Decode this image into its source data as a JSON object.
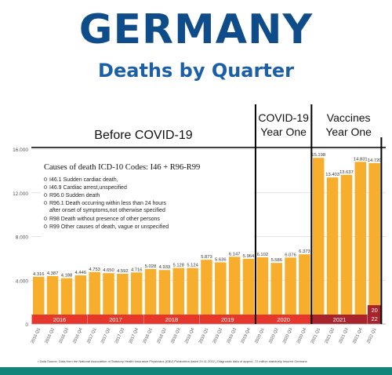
{
  "header": {
    "title": "GERMANY",
    "subtitle": "Deaths by Quarter"
  },
  "chart_data": {
    "type": "bar",
    "categories": [
      "2016 Q1",
      "2016 Q2",
      "2016 Q3",
      "2016 Q4",
      "2017 Q1",
      "2017 Q2",
      "2017 Q3",
      "2017 Q4",
      "2018 Q1",
      "2018 Q2",
      "2018 Q3",
      "2018 Q4",
      "2019 Q1",
      "2019 Q2",
      "2019 Q3",
      "2019 Q4",
      "2020 Q1",
      "2020 Q2",
      "2020 Q3",
      "2020 Q4",
      "2021 Q1",
      "2021 Q2",
      "2021 Q3",
      "2021 Q4",
      "2022 Q1"
    ],
    "values": [
      4316,
      4387,
      4188,
      4446,
      4753,
      4650,
      4592,
      4716,
      5028,
      4933,
      5128,
      5124,
      5873,
      5636,
      6147,
      5964,
      6102,
      5586,
      6076,
      6373,
      15198,
      13403,
      13637,
      14831,
      14720
    ],
    "value_labels": [
      "4.316",
      "4.387",
      "4.188",
      "4.446",
      "4.753",
      "4.650",
      "4.592",
      "4.716",
      "5.028",
      "4.933",
      "5.128",
      "5.124",
      "5.873",
      "5.636",
      "6.147",
      "5.964",
      "6.102",
      "5.586",
      "6.076",
      "6.373",
      "15.198",
      "13.403",
      "13.637",
      "14.831",
      "14.720"
    ],
    "ylim": [
      0,
      16000
    ],
    "y_ticks": [
      0,
      4000,
      8000,
      12000,
      16000
    ],
    "y_tick_labels": [
      "0",
      "4.000",
      "8.000",
      "12.000",
      "16.000"
    ],
    "bar_color": "#f7ae2c",
    "year_bands": [
      {
        "label": "2016",
        "start": 0,
        "end": 3,
        "color": "#e7372d"
      },
      {
        "label": "2017",
        "start": 4,
        "end": 7,
        "color": "#e7372d"
      },
      {
        "label": "2018",
        "start": 8,
        "end": 11,
        "color": "#e7372d"
      },
      {
        "label": "2019",
        "start": 12,
        "end": 15,
        "color": "#e7372d"
      },
      {
        "label": "2020",
        "start": 16,
        "end": 19,
        "color": "#e7372d"
      },
      {
        "label": "2021",
        "start": 20,
        "end": 23,
        "color": "#a8232b"
      },
      {
        "label": "20\n22",
        "start": 24,
        "end": 24,
        "color": "#a8232b"
      }
    ],
    "period_labels": [
      {
        "label": "Before COVID-19"
      },
      {
        "label": "COVID-19\nYear One"
      },
      {
        "label": "Vaccines\nYear One"
      }
    ],
    "annotation": {
      "heading": "Causes of death ICD-10 Codes: I46 + R96-R99",
      "items": [
        "I46.1 Sudden cardiac death,",
        "I46.9 Cardiac arrest,unspecified",
        "R96.0 Sudden death",
        "R96.1 Death occurring within less than 24 hours\nafter onset of symptoms,not otherwise specified",
        "R98 Death without presence of other persons",
        "R99 Other causes of death, vague or unspecified"
      ]
    },
    "source": "Data Source: Data from the National Association of Statutory Health Insurance Physicians (KBV) Publication dated 29.11.2022 | Diagnostic data of approx. 72 million statutorily insured Germans"
  }
}
